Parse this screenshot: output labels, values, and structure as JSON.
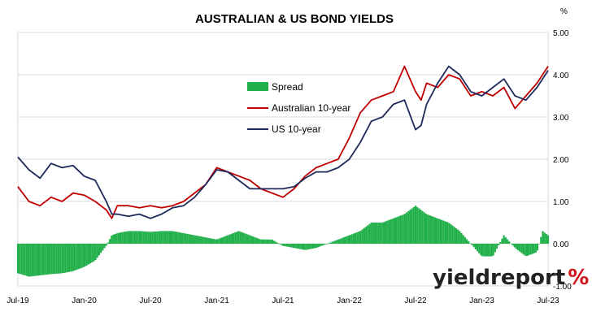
{
  "chart_data": {
    "type": "line",
    "title": "AUSTRALIAN & US BOND YIELDS",
    "y_unit_label": "%",
    "y_axis_side": "right",
    "ylim": [
      -1.0,
      5.0
    ],
    "y_ticks": [
      "5.00",
      "4.00",
      "3.00",
      "2.00",
      "1.00",
      "0.00",
      "-1.00"
    ],
    "y_tick_values": [
      5,
      4,
      3,
      2,
      1,
      0,
      -1
    ],
    "x_ticks": [
      "Jul-19",
      "Jan-20",
      "Jul-20",
      "Jan-21",
      "Jul-21",
      "Jan-22",
      "Jul-22",
      "Jan-23",
      "Jul-23"
    ],
    "x_tick_months": [
      0,
      6,
      12,
      18,
      24,
      30,
      36,
      42,
      48
    ],
    "xlim_months": [
      0,
      48
    ],
    "gridlines": "horizontal",
    "legend_placement": "center",
    "series": [
      {
        "name": "Spread",
        "kind": "bar",
        "color": "#22b04b",
        "x_months": [
          0,
          1,
          2,
          3,
          4,
          5,
          6,
          7,
          8,
          8.5,
          9,
          10,
          11,
          12,
          13,
          14,
          15,
          16,
          17,
          18,
          19,
          20,
          21,
          22,
          23,
          24,
          25,
          26,
          27,
          28,
          29,
          30,
          31,
          32,
          33,
          34,
          35,
          36,
          36.5,
          37,
          38,
          39,
          40,
          41,
          42,
          43,
          44,
          45,
          46,
          47,
          47.5,
          48
        ],
        "values": [
          -0.7,
          -0.78,
          -0.75,
          -0.72,
          -0.7,
          -0.65,
          -0.55,
          -0.4,
          -0.05,
          0.2,
          0.25,
          0.3,
          0.3,
          0.28,
          0.3,
          0.3,
          0.25,
          0.2,
          0.15,
          0.1,
          0.2,
          0.3,
          0.2,
          0.1,
          0.1,
          -0.05,
          -0.1,
          -0.15,
          -0.1,
          0.0,
          0.1,
          0.2,
          0.3,
          0.5,
          0.5,
          0.6,
          0.7,
          0.9,
          0.8,
          0.7,
          0.6,
          0.5,
          0.3,
          0.0,
          -0.3,
          -0.3,
          0.2,
          -0.1,
          -0.3,
          -0.2,
          0.3,
          0.2
        ]
      },
      {
        "name": "Australian 10-year",
        "kind": "line",
        "color": "#c00000",
        "x_months": [
          0,
          1,
          2,
          3,
          4,
          5,
          6,
          7,
          8,
          8.5,
          9,
          10,
          11,
          12,
          13,
          14,
          15,
          16,
          17,
          18,
          19,
          20,
          21,
          22,
          23,
          24,
          25,
          26,
          27,
          28,
          29,
          30,
          31,
          32,
          33,
          34,
          35,
          36,
          36.5,
          37,
          38,
          39,
          40,
          41,
          42,
          43,
          44,
          45,
          46,
          47,
          47.5,
          48
        ],
        "values": [
          1.35,
          1.0,
          0.9,
          1.1,
          1.0,
          1.2,
          1.15,
          1.0,
          0.8,
          0.6,
          0.9,
          0.9,
          0.85,
          0.9,
          0.85,
          0.9,
          1.0,
          1.2,
          1.4,
          1.8,
          1.7,
          1.6,
          1.5,
          1.3,
          1.2,
          1.1,
          1.3,
          1.6,
          1.8,
          1.9,
          2.0,
          2.5,
          3.1,
          3.4,
          3.5,
          3.6,
          4.2,
          3.6,
          3.4,
          3.8,
          3.7,
          4.0,
          3.9,
          3.5,
          3.6,
          3.5,
          3.7,
          3.2,
          3.5,
          3.8,
          4.0,
          4.2
        ]
      },
      {
        "name": "US 10-year",
        "kind": "line",
        "color": "#1f2a5c",
        "x_months": [
          0,
          1,
          2,
          3,
          4,
          5,
          6,
          7,
          8,
          8.5,
          9,
          10,
          11,
          12,
          13,
          14,
          15,
          16,
          17,
          18,
          19,
          20,
          21,
          22,
          23,
          24,
          25,
          26,
          27,
          28,
          29,
          30,
          31,
          32,
          33,
          34,
          35,
          36,
          36.5,
          37,
          38,
          39,
          40,
          41,
          42,
          43,
          44,
          45,
          46,
          47,
          47.5,
          48
        ],
        "values": [
          2.05,
          1.75,
          1.55,
          1.9,
          1.8,
          1.85,
          1.6,
          1.5,
          1.0,
          0.7,
          0.7,
          0.65,
          0.7,
          0.6,
          0.7,
          0.85,
          0.9,
          1.1,
          1.4,
          1.75,
          1.7,
          1.5,
          1.3,
          1.3,
          1.3,
          1.3,
          1.35,
          1.55,
          1.7,
          1.7,
          1.8,
          2.0,
          2.4,
          2.9,
          3.0,
          3.3,
          3.4,
          2.7,
          2.8,
          3.3,
          3.8,
          4.2,
          4.0,
          3.6,
          3.5,
          3.7,
          3.9,
          3.5,
          3.4,
          3.7,
          3.9,
          4.1
        ]
      }
    ]
  },
  "branding": {
    "word": "yieldreport",
    "symbol": "%",
    "word_color": "#222222",
    "symbol_color": "#d0121b"
  }
}
